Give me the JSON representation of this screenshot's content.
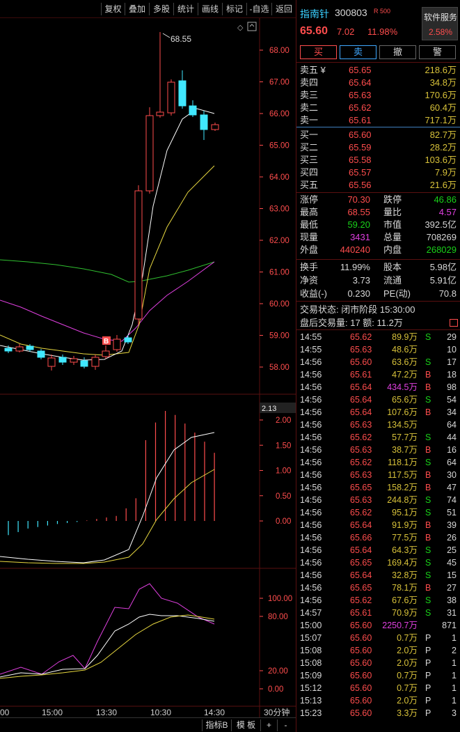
{
  "toolbar": {
    "buttons": [
      "复权",
      "叠加",
      "多股",
      "统计",
      "画线",
      "标记",
      "-自选",
      "返回"
    ]
  },
  "chart": {
    "top_axis": [
      "68.00",
      "67.00",
      "66.00",
      "65.00",
      "64.00",
      "63.00",
      "62.00",
      "61.00",
      "60.00",
      "59.00",
      "58.00"
    ],
    "high_label": "68.55",
    "b_marker": "B",
    "mid_current": "2.13",
    "mid_axis": [
      "2.00",
      "1.50",
      "1.00",
      "0.50",
      "0.00"
    ],
    "low_axis": [
      "100.00",
      "80.00",
      "20.00",
      "0.00"
    ],
    "time_labels": [
      "00",
      "15:00",
      "13:30",
      "10:30",
      "14:30"
    ],
    "period_label": "30分钟"
  },
  "bottombar": {
    "indicator": "指标B",
    "template": "模 板",
    "plus": "+",
    "minus": "-"
  },
  "quote": {
    "name": "指南针",
    "code": "300803",
    "tag": "R 500",
    "service_label": "软件服务",
    "service_pct": "2.58%",
    "price": "65.60",
    "change": "7.02",
    "change_pct": "11.98%"
  },
  "trade_buttons": [
    "买",
    "卖",
    "撤",
    "警"
  ],
  "sell_orders": [
    {
      "label": "卖五 ¥",
      "price": "65.65",
      "vol": "218.6万"
    },
    {
      "label": "卖四",
      "price": "65.64",
      "vol": "34.8万"
    },
    {
      "label": "卖三",
      "price": "65.63",
      "vol": "170.6万"
    },
    {
      "label": "卖二",
      "price": "65.62",
      "vol": "60.4万"
    },
    {
      "label": "卖一",
      "price": "65.61",
      "vol": "717.1万"
    }
  ],
  "buy_orders": [
    {
      "label": "买一",
      "price": "65.60",
      "vol": "82.7万"
    },
    {
      "label": "买二",
      "price": "65.59",
      "vol": "28.2万"
    },
    {
      "label": "买三",
      "price": "65.58",
      "vol": "103.6万"
    },
    {
      "label": "买四",
      "price": "65.57",
      "vol": "7.9万"
    },
    {
      "label": "买五",
      "price": "65.56",
      "vol": "21.6万"
    }
  ],
  "stats": [
    {
      "l1": "涨停",
      "v1": "70.30",
      "l2": "跌停",
      "v2": "46.86"
    },
    {
      "l1": "最高",
      "v1": "68.55",
      "l2": "量比",
      "v2": "4.57"
    },
    {
      "l1": "最低",
      "v1": "59.20",
      "l2": "市值",
      "v2": "392.5亿"
    },
    {
      "l1": "现量",
      "v1": "3431",
      "l2": "总量",
      "v2": "708269"
    },
    {
      "l1": "外盘",
      "v1": "440240",
      "l2": "内盘",
      "v2": "268029"
    }
  ],
  "stats2": [
    {
      "l1": "换手",
      "v1": "11.99%",
      "l2": "股本",
      "v2": "5.98亿"
    },
    {
      "l1": "净资",
      "v1": "3.73",
      "l2": "流通",
      "v2": "5.91亿"
    },
    {
      "l1": "收益(-)",
      "v1": "0.230",
      "l2": "PE(动)",
      "v2": "70.8"
    }
  ],
  "trade_status": "交易状态: 闭市阶段 15:30:00",
  "after_hours": "盘后交易量: 17  额: 11.2万",
  "ticks": [
    {
      "t": "14:55",
      "p": "65.62",
      "v": "89.9万",
      "s": "S",
      "n": "29"
    },
    {
      "t": "14:55",
      "p": "65.63",
      "v": "48.6万",
      "s": "",
      "n": "10"
    },
    {
      "t": "14:56",
      "p": "65.60",
      "v": "63.6万",
      "s": "S",
      "n": "17"
    },
    {
      "t": "14:56",
      "p": "65.61",
      "v": "47.2万",
      "s": "B",
      "n": "18"
    },
    {
      "t": "14:56",
      "p": "65.64",
      "v": "434.5万",
      "s": "B",
      "n": "98"
    },
    {
      "t": "14:56",
      "p": "65.64",
      "v": "65.6万",
      "s": "S",
      "n": "54"
    },
    {
      "t": "14:56",
      "p": "65.64",
      "v": "107.6万",
      "s": "B",
      "n": "34"
    },
    {
      "t": "14:56",
      "p": "65.63",
      "v": "134.5万",
      "s": "",
      "n": "64"
    },
    {
      "t": "14:56",
      "p": "65.62",
      "v": "57.7万",
      "s": "S",
      "n": "44"
    },
    {
      "t": "14:56",
      "p": "65.63",
      "v": "38.7万",
      "s": "B",
      "n": "16"
    },
    {
      "t": "14:56",
      "p": "65.62",
      "v": "118.1万",
      "s": "S",
      "n": "64"
    },
    {
      "t": "14:56",
      "p": "65.63",
      "v": "117.5万",
      "s": "B",
      "n": "30"
    },
    {
      "t": "14:56",
      "p": "65.65",
      "v": "158.2万",
      "s": "B",
      "n": "47"
    },
    {
      "t": "14:56",
      "p": "65.63",
      "v": "244.8万",
      "s": "S",
      "n": "74"
    },
    {
      "t": "14:56",
      "p": "65.62",
      "v": "95.1万",
      "s": "S",
      "n": "51"
    },
    {
      "t": "14:56",
      "p": "65.64",
      "v": "91.9万",
      "s": "B",
      "n": "39"
    },
    {
      "t": "14:56",
      "p": "65.66",
      "v": "77.5万",
      "s": "B",
      "n": "26"
    },
    {
      "t": "14:56",
      "p": "65.64",
      "v": "64.3万",
      "s": "S",
      "n": "25"
    },
    {
      "t": "14:56",
      "p": "65.65",
      "v": "169.4万",
      "s": "S",
      "n": "45"
    },
    {
      "t": "14:56",
      "p": "65.64",
      "v": "32.8万",
      "s": "S",
      "n": "15"
    },
    {
      "t": "14:56",
      "p": "65.65",
      "v": "78.1万",
      "s": "B",
      "n": "27"
    },
    {
      "t": "14:56",
      "p": "65.62",
      "v": "67.6万",
      "s": "S",
      "n": "38"
    },
    {
      "t": "14:57",
      "p": "65.61",
      "v": "70.9万",
      "s": "S",
      "n": "31"
    },
    {
      "t": "15:00",
      "p": "65.60",
      "v": "2250.7万",
      "s": "",
      "n": "871"
    },
    {
      "t": "15:07",
      "p": "65.60",
      "v": "0.7万",
      "s": "P",
      "n": "1"
    },
    {
      "t": "15:08",
      "p": "65.60",
      "v": "2.0万",
      "s": "P",
      "n": "2"
    },
    {
      "t": "15:08",
      "p": "65.60",
      "v": "2.0万",
      "s": "P",
      "n": "1"
    },
    {
      "t": "15:09",
      "p": "65.60",
      "v": "0.7万",
      "s": "P",
      "n": "1"
    },
    {
      "t": "15:12",
      "p": "65.60",
      "v": "0.7万",
      "s": "P",
      "n": "1"
    },
    {
      "t": "15:13",
      "p": "65.60",
      "v": "2.0万",
      "s": "P",
      "n": "1"
    },
    {
      "t": "15:23",
      "p": "65.60",
      "v": "3.3万",
      "s": "P",
      "n": "3"
    }
  ],
  "colors": {
    "up": "#ff4d4d",
    "down": "#40e8ff",
    "ma_white": "#ffffff",
    "ma_yellow": "#e8d840",
    "ma_magenta": "#e040e0",
    "ma_green": "#30c030"
  }
}
